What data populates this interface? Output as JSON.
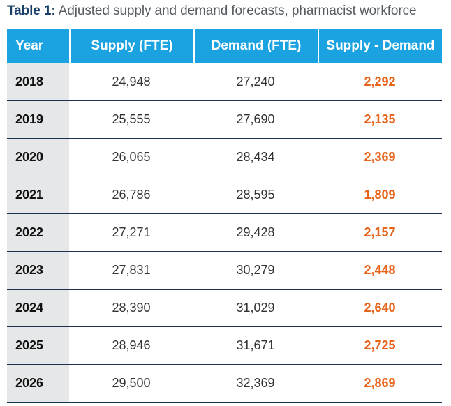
{
  "caption": {
    "label": "Table 1:",
    "text": " Adjusted supply and demand forecasts, pharmacist workforce"
  },
  "colors": {
    "header_bg": "#1aa3e0",
    "year_col_bg": "#e6e7e8",
    "diff_text": "#e8631a",
    "row_divider": "#1c2f4f",
    "caption_label": "#1a3f6b"
  },
  "table": {
    "headers": [
      "Year",
      "Supply (FTE)",
      "Demand (FTE)",
      "Supply - Demand"
    ],
    "rows": [
      [
        "2018",
        "24,948",
        "27,240",
        "2,292"
      ],
      [
        "2019",
        "25,555",
        "27,690",
        "2,135"
      ],
      [
        "2020",
        "26,065",
        "28,434",
        "2,369"
      ],
      [
        "2021",
        "26,786",
        "28,595",
        "1,809"
      ],
      [
        "2022",
        "27,271",
        "29,428",
        "2,157"
      ],
      [
        "2023",
        "27,831",
        "30,279",
        "2,448"
      ],
      [
        "2024",
        "28,390",
        "31,029",
        "2,640"
      ],
      [
        "2025",
        "28,946",
        "31,671",
        "2,725"
      ],
      [
        "2026",
        "29,500",
        "32,369",
        "2,869"
      ]
    ]
  }
}
